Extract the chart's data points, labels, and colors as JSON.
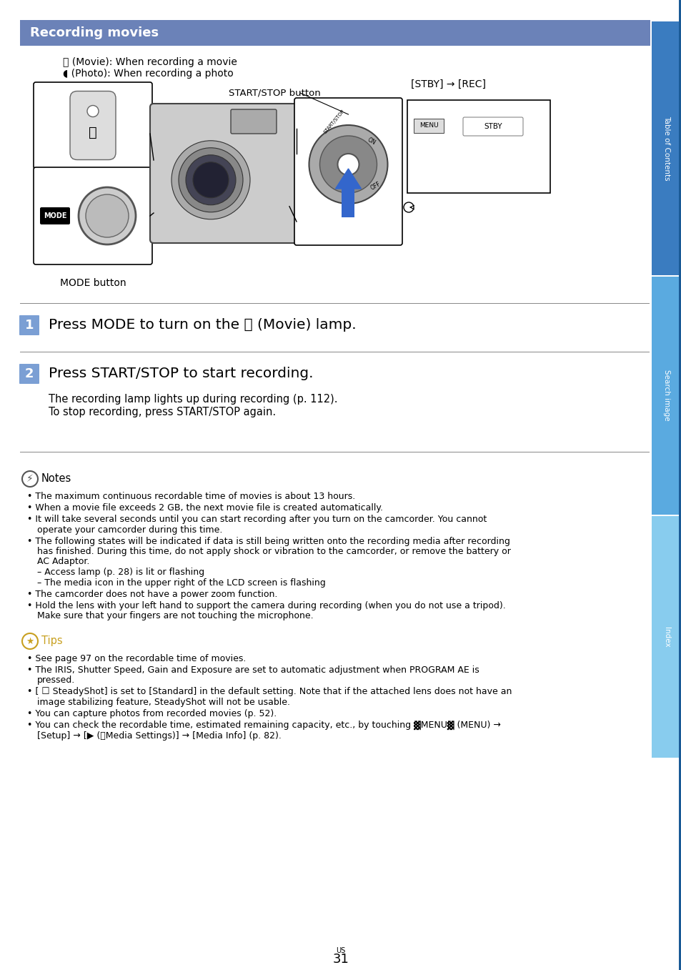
{
  "title": "Recording movies",
  "title_bg_color": "#6b82b8",
  "title_text_color": "#ffffff",
  "page_bg_color": "#ffffff",
  "step1_text": "Press MODE to turn on the ⧖ (Movie) lamp.",
  "step2_text": "Press START/STOP to start recording.",
  "step2_sub1": "The recording lamp lights up during recording (p. 112).",
  "step2_sub2": "To stop recording, press START/STOP again.",
  "step_badge_color": "#7b9fd4",
  "notes_header": "Notes",
  "notes": [
    "The maximum continuous recordable time of movies is about 13 hours.",
    "When a movie file exceeds 2 GB, the next movie file is created automatically.",
    "It will take several seconds until you can start recording after you turn on the camcorder. You cannot\noperate your camcorder during this time.",
    "The following states will be indicated if data is still being written onto the recording media after recording\nhas finished. During this time, do not apply shock or vibration to the camcorder, or remove the battery or\nAC Adaptor.\n– Access lamp (p. 28) is lit or flashing\n– The media icon in the upper right of the LCD screen is flashing",
    "The camcorder does not have a power zoom function.",
    "Hold the lens with your left hand to support the camera during recording (when you do not use a tripod).\nMake sure that your fingers are not touching the microphone."
  ],
  "tips_header": "Tips",
  "tips": [
    "See page 97 on the recordable time of movies.",
    "The IRIS, Shutter Speed, Gain and Exposure are set to automatic adjustment when PROGRAM AE is\npressed.",
    "[ ☐ SteadyShot] is set to [Standard] in the default setting. Note that if the attached lens does not have an\nimage stabilizing feature, SteadyShot will not be usable.",
    "You can capture photos from recorded movies (p. 52).",
    "You can check the recordable time, estimated remaining capacity, etc., by touching ▓MENU▓ (MENU) →\n[Setup] → [▶ (⎄Media Settings)] → [Media Info] (p. 82)."
  ],
  "page_number": "31",
  "toc_label": "Table of Contents",
  "search_label": "Search image",
  "index_label": "Index",
  "caption_movie": "⧖ (Movie): When recording a movie",
  "caption_photo": "◖ (Photo): When recording a photo",
  "start_stop_label": "START/STOP button",
  "stby_rec_label": "[STBY] → [REC]",
  "mode_label": "MODE button",
  "notes_icon_color": "#4a7fa5",
  "tips_icon_color": "#c8a020",
  "tips_text_color": "#c8a020",
  "divider_color": "#888888",
  "body_text_color": "#111111",
  "toc_color1": "#3a7cc0",
  "toc_color2": "#5aaae0",
  "toc_color3": "#88ccee",
  "sidebar_dark": "#1a5a96"
}
